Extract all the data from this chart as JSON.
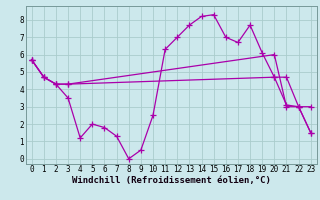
{
  "background_color": "#cce8ec",
  "grid_color": "#aacccc",
  "line_color": "#aa00aa",
  "marker": "+",
  "markersize": 4,
  "linewidth": 0.9,
  "xlim": [
    -0.5,
    23.5
  ],
  "ylim": [
    -0.3,
    8.8
  ],
  "yticks": [
    0,
    1,
    2,
    3,
    4,
    5,
    6,
    7,
    8
  ],
  "xticks": [
    0,
    1,
    2,
    3,
    4,
    5,
    6,
    7,
    8,
    9,
    10,
    11,
    12,
    13,
    14,
    15,
    16,
    17,
    18,
    19,
    20,
    21,
    22,
    23
  ],
  "xlabel": "Windchill (Refroidissement éolien,°C)",
  "xlabel_fontsize": 6.5,
  "xlabel_color": "#110011",
  "tick_fontsize": 5.5,
  "series1": {
    "x": [
      0,
      1,
      2,
      3,
      20,
      21,
      22,
      23
    ],
    "y": [
      5.7,
      4.7,
      4.3,
      4.3,
      6.0,
      3.0,
      3.0,
      3.0
    ]
  },
  "series2": {
    "x": [
      0,
      1,
      2,
      3,
      20,
      21,
      22,
      23
    ],
    "y": [
      5.7,
      4.7,
      4.3,
      4.3,
      4.7,
      4.7,
      3.0,
      1.5
    ]
  },
  "series3": {
    "x": [
      0,
      1,
      2,
      3,
      4,
      5,
      6,
      7,
      8,
      9,
      10,
      11,
      12,
      13,
      14,
      15,
      16,
      17,
      18,
      19,
      20,
      21,
      22,
      23
    ],
    "y": [
      5.7,
      4.7,
      4.3,
      3.5,
      1.2,
      2.0,
      1.8,
      1.3,
      0.0,
      0.5,
      2.5,
      6.3,
      7.0,
      7.7,
      8.2,
      8.3,
      7.0,
      6.7,
      7.7,
      6.1,
      4.7,
      3.1,
      3.0,
      1.5
    ]
  }
}
